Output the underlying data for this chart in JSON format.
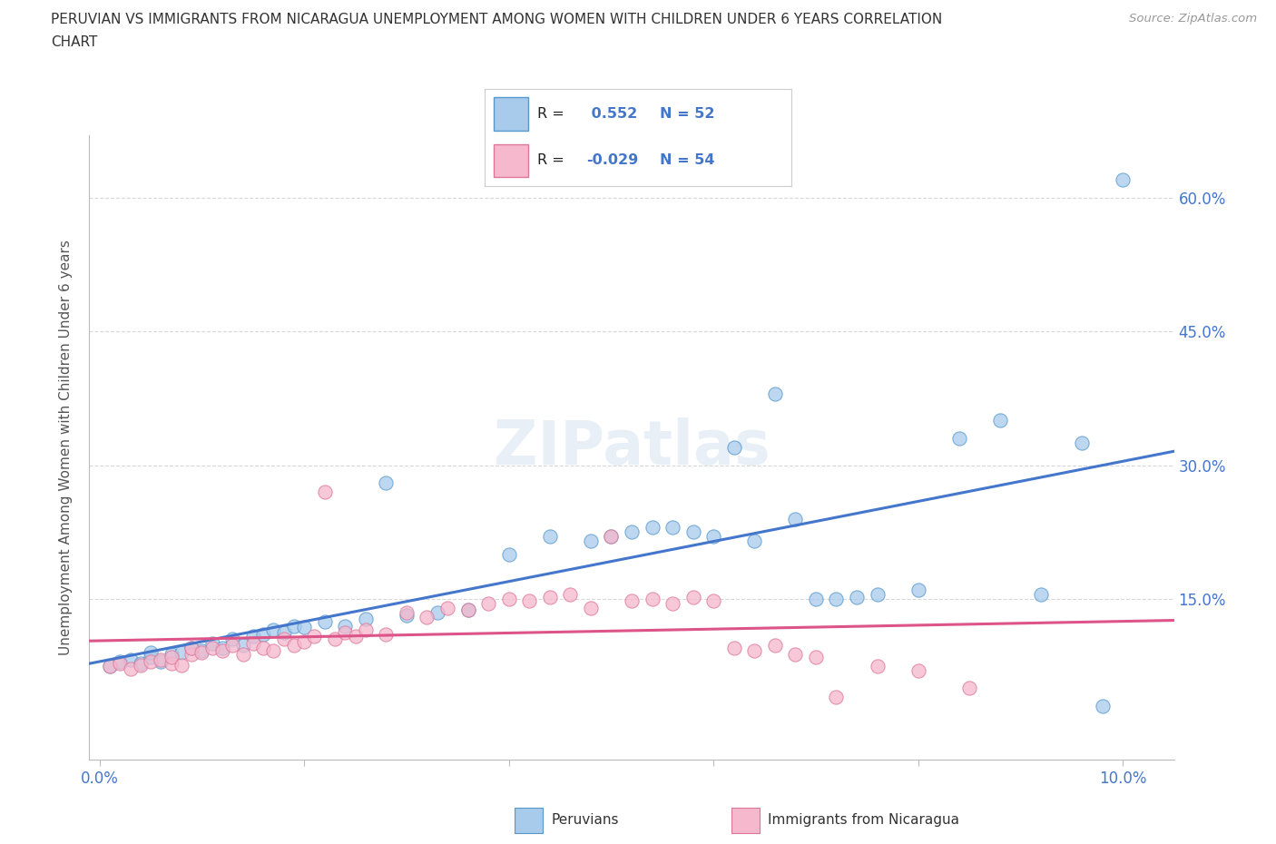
{
  "title_line1": "PERUVIAN VS IMMIGRANTS FROM NICARAGUA UNEMPLOYMENT AMONG WOMEN WITH CHILDREN UNDER 6 YEARS CORRELATION",
  "title_line2": "CHART",
  "source": "Source: ZipAtlas.com",
  "ylabel": "Unemployment Among Women with Children Under 6 years",
  "blue_R": 0.552,
  "blue_N": 52,
  "pink_R": -0.029,
  "pink_N": 54,
  "blue_label": "Peruvians",
  "pink_label": "Immigrants from Nicaragua",
  "xlim": [
    -0.001,
    0.105
  ],
  "ylim": [
    -0.03,
    0.67
  ],
  "xticks": [
    0.0,
    0.02,
    0.04,
    0.06,
    0.08,
    0.1
  ],
  "xtick_labels": [
    "0.0%",
    "",
    "",
    "",
    "",
    "10.0%"
  ],
  "yticks_right": [
    0.15,
    0.3,
    0.45,
    0.6
  ],
  "ytick_labels_right": [
    "15.0%",
    "30.0%",
    "45.0%",
    "60.0%"
  ],
  "blue_fill": "#a8caeb",
  "pink_fill": "#f5b8cc",
  "blue_edge": "#5599cc",
  "pink_edge": "#dd7799",
  "blue_line": "#4477cc",
  "pink_line": "#dd5588",
  "right_label_color": "#4477cc",
  "background_color": "#ffffff",
  "grid_color": "#d8d8d8",
  "blue_scatter_x": [
    0.001,
    0.002,
    0.003,
    0.004,
    0.005,
    0.005,
    0.006,
    0.007,
    0.008,
    0.009,
    0.01,
    0.011,
    0.012,
    0.013,
    0.014,
    0.015,
    0.016,
    0.017,
    0.018,
    0.019,
    0.02,
    0.022,
    0.024,
    0.026,
    0.028,
    0.03,
    0.033,
    0.036,
    0.04,
    0.044,
    0.048,
    0.052,
    0.056,
    0.06,
    0.064,
    0.068,
    0.072,
    0.076,
    0.08,
    0.084,
    0.088,
    0.092,
    0.096,
    0.05,
    0.054,
    0.058,
    0.062,
    0.066,
    0.07,
    0.074,
    0.098,
    0.1
  ],
  "blue_scatter_y": [
    0.075,
    0.08,
    0.082,
    0.078,
    0.085,
    0.09,
    0.08,
    0.088,
    0.09,
    0.095,
    0.092,
    0.1,
    0.095,
    0.105,
    0.098,
    0.108,
    0.11,
    0.115,
    0.112,
    0.12,
    0.118,
    0.125,
    0.12,
    0.128,
    0.28,
    0.132,
    0.135,
    0.138,
    0.2,
    0.22,
    0.215,
    0.225,
    0.23,
    0.22,
    0.215,
    0.24,
    0.15,
    0.155,
    0.16,
    0.33,
    0.35,
    0.155,
    0.325,
    0.22,
    0.23,
    0.225,
    0.32,
    0.38,
    0.15,
    0.152,
    0.03,
    0.62
  ],
  "pink_scatter_x": [
    0.001,
    0.002,
    0.003,
    0.004,
    0.005,
    0.006,
    0.007,
    0.007,
    0.008,
    0.009,
    0.009,
    0.01,
    0.011,
    0.012,
    0.013,
    0.014,
    0.015,
    0.016,
    0.017,
    0.018,
    0.019,
    0.02,
    0.021,
    0.022,
    0.023,
    0.024,
    0.025,
    0.026,
    0.028,
    0.03,
    0.032,
    0.034,
    0.036,
    0.038,
    0.04,
    0.042,
    0.044,
    0.046,
    0.048,
    0.05,
    0.052,
    0.054,
    0.056,
    0.058,
    0.06,
    0.062,
    0.064,
    0.066,
    0.068,
    0.07,
    0.072,
    0.076,
    0.08,
    0.085
  ],
  "pink_scatter_y": [
    0.075,
    0.078,
    0.072,
    0.076,
    0.08,
    0.082,
    0.078,
    0.085,
    0.076,
    0.088,
    0.095,
    0.09,
    0.095,
    0.092,
    0.098,
    0.088,
    0.1,
    0.095,
    0.092,
    0.105,
    0.098,
    0.102,
    0.108,
    0.27,
    0.105,
    0.112,
    0.108,
    0.115,
    0.11,
    0.135,
    0.13,
    0.14,
    0.138,
    0.145,
    0.15,
    0.148,
    0.152,
    0.155,
    0.14,
    0.22,
    0.148,
    0.15,
    0.145,
    0.152,
    0.148,
    0.095,
    0.092,
    0.098,
    0.088,
    0.085,
    0.04,
    0.075,
    0.07,
    0.05
  ]
}
